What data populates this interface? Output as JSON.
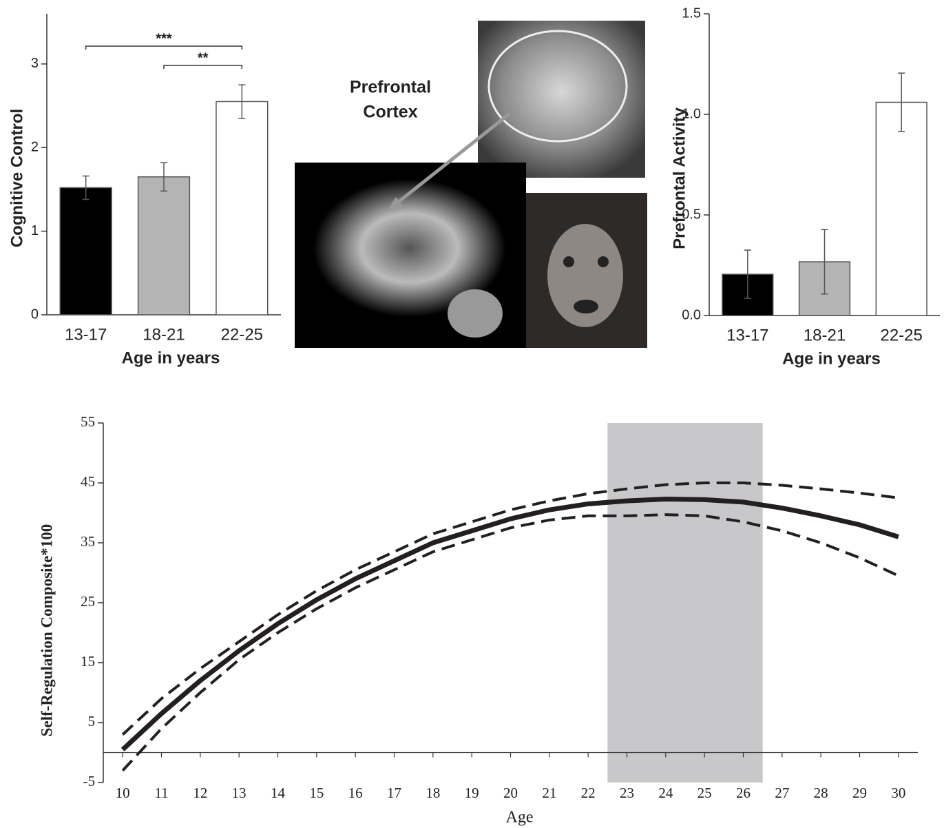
{
  "chart_data": [
    {
      "type": "bar",
      "ylabel": "Cognitive Control",
      "xlabel": "Age in years",
      "categories": [
        "13-17",
        "18-21",
        "22-25"
      ],
      "values": [
        1.52,
        1.65,
        2.55
      ],
      "errors": [
        0.14,
        0.17,
        0.2
      ],
      "colors": [
        "#000000",
        "#b4b4b4",
        "#ffffff"
      ],
      "ylim": [
        0,
        3.6
      ],
      "yticks": [
        0,
        1,
        2,
        3
      ],
      "annotations": [
        "***",
        "**"
      ]
    },
    {
      "type": "bar",
      "ylabel": "Prefrontal Activity",
      "xlabel": "Age in years",
      "categories": [
        "13-17",
        "18-21",
        "22-25"
      ],
      "values": [
        0.205,
        0.267,
        1.06
      ],
      "errors": [
        0.12,
        0.16,
        0.145
      ],
      "colors": [
        "#000000",
        "#b4b4b4",
        "#ffffff"
      ],
      "ylim": [
        0,
        1.5
      ],
      "yticks": [
        {
          "value": 0,
          "label": "0.0"
        },
        0.5,
        {
          "value": 1,
          "label": "1.0"
        },
        1.5
      ]
    },
    {
      "type": "line",
      "ylabel": "Self-Regulation Composite*100",
      "xlabel": "Age",
      "x": [
        10,
        11,
        12,
        13,
        14,
        15,
        16,
        17,
        18,
        19,
        20,
        21,
        22,
        23,
        24,
        25,
        26,
        27,
        28,
        29,
        30
      ],
      "series": [
        {
          "color": "#231f20",
          "style": "solid",
          "values": [
            0.5,
            6.5,
            12,
            17,
            21.5,
            25.5,
            29,
            32,
            35,
            37,
            39,
            40.5,
            41.5,
            42,
            42.3,
            42.2,
            41.8,
            40.8,
            39.5,
            38,
            36
          ]
        },
        {
          "color": "#231f20",
          "style": "dashed",
          "values": [
            3,
            9,
            14,
            18.5,
            23,
            27,
            30.5,
            33.5,
            36.5,
            38.5,
            40.5,
            42,
            43.2,
            44,
            44.7,
            45,
            45,
            44.6,
            44,
            43.3,
            42.5
          ]
        },
        {
          "color": "#231f20",
          "style": "dashed",
          "values": [
            -3,
            4,
            10,
            15.5,
            20,
            24,
            27.5,
            30.5,
            33.5,
            35.5,
            37.5,
            38.8,
            39.5,
            39.5,
            39.7,
            39.5,
            38.5,
            37,
            35,
            32.5,
            29.5
          ]
        }
      ],
      "shade": [
        22.5,
        26.5
      ],
      "shade_color": "#c8c8ca",
      "xlim": [
        9.5,
        30.5
      ],
      "xticks": [
        10,
        11,
        12,
        13,
        14,
        15,
        16,
        17,
        18,
        19,
        20,
        21,
        22,
        23,
        24,
        25,
        26,
        27,
        28,
        29,
        30
      ],
      "ylim": [
        -5,
        55
      ],
      "yticks": [
        -5,
        5,
        15,
        25,
        35,
        45,
        55
      ]
    }
  ],
  "figure": {
    "label_lines": [
      "Prefrontal",
      "Cortex"
    ]
  }
}
